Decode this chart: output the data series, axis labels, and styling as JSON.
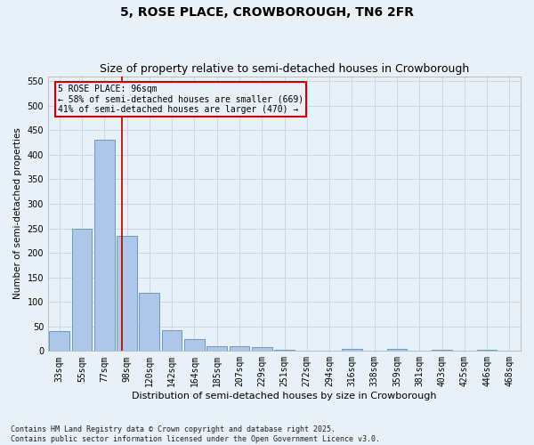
{
  "title": "5, ROSE PLACE, CROWBOROUGH, TN6 2FR",
  "subtitle": "Size of property relative to semi-detached houses in Crowborough",
  "xlabel": "Distribution of semi-detached houses by size in Crowborough",
  "ylabel": "Number of semi-detached properties",
  "categories": [
    "33sqm",
    "55sqm",
    "77sqm",
    "98sqm",
    "120sqm",
    "142sqm",
    "164sqm",
    "185sqm",
    "207sqm",
    "229sqm",
    "251sqm",
    "272sqm",
    "294sqm",
    "316sqm",
    "338sqm",
    "359sqm",
    "381sqm",
    "403sqm",
    "425sqm",
    "446sqm",
    "468sqm"
  ],
  "values": [
    40,
    250,
    430,
    235,
    118,
    42,
    25,
    10,
    10,
    7,
    2,
    0,
    0,
    4,
    0,
    4,
    0,
    2,
    0,
    2,
    0
  ],
  "bar_color": "#aec6e8",
  "bar_edge_color": "#5a8fc0",
  "grid_color": "#c8d8e8",
  "background_color": "#e8f0f8",
  "vline_x_index": 2.78,
  "vline_color": "#aa0000",
  "annotation_title": "5 ROSE PLACE: 96sqm",
  "annotation_line1": "← 58% of semi-detached houses are smaller (669)",
  "annotation_line2": "41% of semi-detached houses are larger (470) →",
  "annotation_box_color": "#cc0000",
  "ylim": [
    0,
    560
  ],
  "yticks": [
    0,
    50,
    100,
    150,
    200,
    250,
    300,
    350,
    400,
    450,
    500,
    550
  ],
  "footer": "Contains HM Land Registry data © Crown copyright and database right 2025.\nContains public sector information licensed under the Open Government Licence v3.0.",
  "title_fontsize": 10,
  "subtitle_fontsize": 9,
  "xlabel_fontsize": 8,
  "ylabel_fontsize": 7.5,
  "tick_fontsize": 7,
  "annotation_fontsize": 7,
  "footer_fontsize": 6
}
